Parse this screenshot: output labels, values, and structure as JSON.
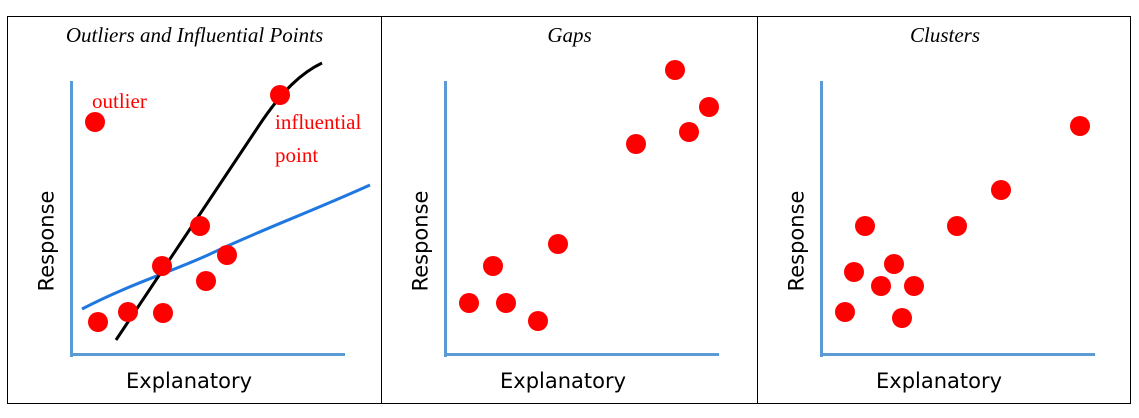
{
  "panels": [
    {
      "title": "Outliers and Influential Points",
      "xlabel": "Explanatory",
      "ylabel": "Response",
      "annotations": {
        "outlier": "outlier",
        "influential_line1": "influential",
        "influential_line2": "point"
      }
    },
    {
      "title": "Gaps",
      "xlabel": "Explanatory",
      "ylabel": "Response"
    },
    {
      "title": "Clusters",
      "xlabel": "Explanatory",
      "ylabel": "Response"
    }
  ],
  "colors": {
    "points": "#ff0000",
    "axes": "#5b9bd5",
    "fit_with_influential": "#000000",
    "fit_without_influential": "#1f78e0"
  }
}
